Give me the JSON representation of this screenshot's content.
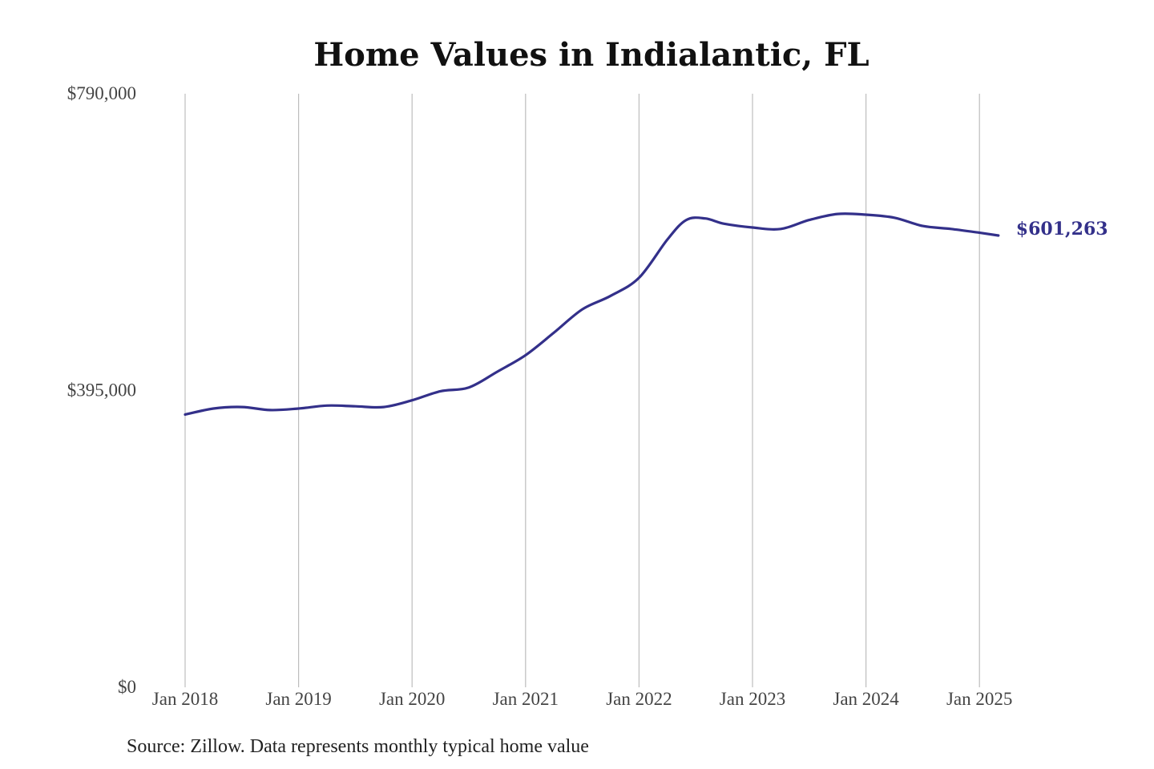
{
  "chart_data": {
    "type": "line",
    "title": "Home Values in Indialantic, FL",
    "xlabel": "",
    "ylabel": "",
    "source": "Source: Zillow. Data represents monthly typical home value",
    "ylim": [
      0,
      790000
    ],
    "yticks": [
      {
        "value": 0,
        "label": "$0"
      },
      {
        "value": 395000,
        "label": "$395,000"
      },
      {
        "value": 790000,
        "label": "$790,000"
      }
    ],
    "xticks": [
      {
        "year": 2018,
        "label": "Jan 2018"
      },
      {
        "year": 2019,
        "label": "Jan 2019"
      },
      {
        "year": 2020,
        "label": "Jan 2020"
      },
      {
        "year": 2021,
        "label": "Jan 2021"
      },
      {
        "year": 2022,
        "label": "Jan 2022"
      },
      {
        "year": 2023,
        "label": "Jan 2023"
      },
      {
        "year": 2024,
        "label": "Jan 2024"
      },
      {
        "year": 2025,
        "label": "Jan 2025"
      }
    ],
    "grid": {
      "vertical": true,
      "horizontal": false
    },
    "series": [
      {
        "color": "#33308a",
        "end_label": "$601,263",
        "points": [
          {
            "date": "2018-01",
            "value": 363000
          },
          {
            "date": "2018-04",
            "value": 371000
          },
          {
            "date": "2018-07",
            "value": 373000
          },
          {
            "date": "2018-10",
            "value": 369000
          },
          {
            "date": "2019-01",
            "value": 371000
          },
          {
            "date": "2019-04",
            "value": 375000
          },
          {
            "date": "2019-07",
            "value": 374000
          },
          {
            "date": "2019-10",
            "value": 373000
          },
          {
            "date": "2020-01",
            "value": 382000
          },
          {
            "date": "2020-04",
            "value": 394000
          },
          {
            "date": "2020-07",
            "value": 399000
          },
          {
            "date": "2020-10",
            "value": 420000
          },
          {
            "date": "2021-01",
            "value": 442000
          },
          {
            "date": "2021-04",
            "value": 472000
          },
          {
            "date": "2021-07",
            "value": 503000
          },
          {
            "date": "2021-10",
            "value": 521000
          },
          {
            "date": "2022-01",
            "value": 545000
          },
          {
            "date": "2022-04",
            "value": 596000
          },
          {
            "date": "2022-06",
            "value": 622000
          },
          {
            "date": "2022-08",
            "value": 624000
          },
          {
            "date": "2022-10",
            "value": 617000
          },
          {
            "date": "2023-01",
            "value": 612000
          },
          {
            "date": "2023-04",
            "value": 610000
          },
          {
            "date": "2023-07",
            "value": 622000
          },
          {
            "date": "2023-10",
            "value": 630000
          },
          {
            "date": "2024-01",
            "value": 629000
          },
          {
            "date": "2024-04",
            "value": 625000
          },
          {
            "date": "2024-07",
            "value": 614000
          },
          {
            "date": "2024-10",
            "value": 610000
          },
          {
            "date": "2025-01",
            "value": 605000
          },
          {
            "date": "2025-03",
            "value": 601263
          }
        ]
      }
    ]
  }
}
